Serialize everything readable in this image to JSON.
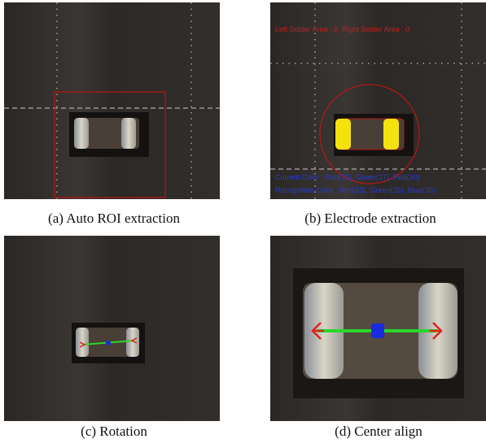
{
  "panels": [
    {
      "caption": "(a) Auto ROI extraction"
    },
    {
      "caption": "(b) Electrode extraction",
      "overlay_texts": [
        "Left Solder Area : 0, Right Solder Area : 0",
        "Current Color : Red(23), Green(27), Red(30)",
        "Recognition Color : Red(23), Green(25), Blue(30)"
      ]
    },
    {
      "caption": "(c) Rotation"
    },
    {
      "caption": "(d) Center align"
    }
  ]
}
